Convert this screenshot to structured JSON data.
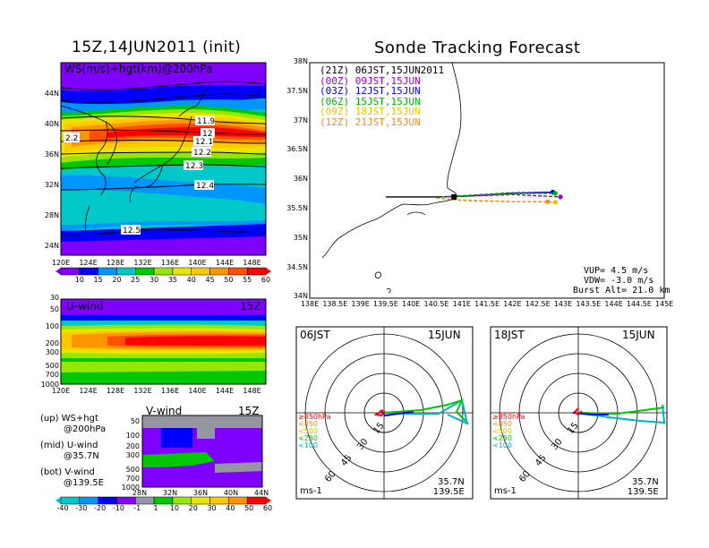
{
  "titles": {
    "left": "15Z,14JUN2011 (init)",
    "right": "Sonde Tracking Forecast"
  },
  "ws_panel": {
    "label": "WS(m/s)+hgt(km)@200hPa",
    "lat_ticks": [
      "44N",
      "40N",
      "36N",
      "32N",
      "28N",
      "24N"
    ],
    "lon_ticks": [
      "120E",
      "124E",
      "128E",
      "132E",
      "136E",
      "140E",
      "144E",
      "148E"
    ],
    "contour_labels": [
      "11.9",
      "12",
      "12.1",
      "12.2",
      "12.3",
      "12.4",
      "12.5",
      "2.2"
    ],
    "colorbar": [
      "10",
      "15",
      "20",
      "25",
      "30",
      "35",
      "40",
      "45",
      "50",
      "55",
      "60"
    ]
  },
  "u_panel": {
    "label": "U-wind",
    "time": "15Z",
    "p_ticks": [
      "30",
      "50",
      "100",
      "200",
      "300",
      "500",
      "700",
      "1000"
    ],
    "lon_ticks": [
      "120E",
      "124E",
      "128E",
      "132E",
      "136E",
      "140E",
      "144E",
      "148E"
    ]
  },
  "v_panel": {
    "label": "V-wind",
    "time": "15Z",
    "p_ticks": [
      "50",
      "100",
      "200",
      "300",
      "500",
      "700",
      "1000"
    ],
    "lat_ticks": [
      "28N",
      "32N",
      "36N",
      "40N",
      "44N"
    ]
  },
  "legend": [
    {
      "line1": "(up) WS+hgt",
      "line2": "@200hPa"
    },
    {
      "line1": "(mid) U-wind",
      "line2": "@35.7N"
    },
    {
      "line1": "(bot) V-wind",
      "line2": "@139.5E"
    }
  ],
  "bottom_colorbar": [
    "-40",
    "-30",
    "-20",
    "-10",
    "-1",
    "1",
    "10",
    "20",
    "30",
    "40",
    "50",
    "60"
  ],
  "tracking": {
    "lat_ticks": [
      "38N",
      "37.5N",
      "37N",
      "36.5N",
      "36N",
      "35.5N",
      "35N",
      "34.5N",
      "34N"
    ],
    "lon_ticks": [
      "138E",
      "138.5E",
      "139E",
      "139.5E",
      "140E",
      "140.5E",
      "141E",
      "141.5E",
      "142E",
      "142.5E",
      "143E",
      "143.5E",
      "144E",
      "144.5E",
      "145E"
    ],
    "runs": [
      {
        "z": "(21Z)",
        "t": "06JST,15JUN2011",
        "color": "#000000"
      },
      {
        "z": "(00Z)",
        "t": "09JST,15JUN",
        "color": "#a000c8"
      },
      {
        "z": "(03Z)",
        "t": "12JST,15JUN",
        "color": "#0000ff"
      },
      {
        "z": "(06Z)",
        "t": "15JST,15JUN",
        "color": "#00b400"
      },
      {
        "z": "(09Z)",
        "t": "18JST,15JUN",
        "color": "#e6c800"
      },
      {
        "z": "(12Z)",
        "t": "21JST,15JUN",
        "color": "#f08c28"
      }
    ],
    "info": [
      "VUP=  4.5 m/s",
      "VDW= -3.0 m/s",
      "Burst Alt= 21.0 km"
    ]
  },
  "hodo_left": {
    "time": "06JST",
    "date": "15JUN",
    "lat": "35.7N",
    "lon": "139.5E",
    "unit": "ms-1",
    "rings": [
      "15",
      "30",
      "45",
      "60"
    ],
    "levels": [
      {
        "label": "≥850hPa",
        "color": "#ff0000"
      },
      {
        "label": "<850",
        "color": "#f08c28"
      },
      {
        "label": "<500",
        "color": "#c8c800"
      },
      {
        "label": "<250",
        "color": "#00c800"
      },
      {
        "label": "<100",
        "color": "#00b4c8"
      }
    ]
  },
  "hodo_right": {
    "time": "18JST",
    "date": "15JUN",
    "lat": "35.7N",
    "lon": "139.5E",
    "unit": "ms-1",
    "rings": [
      "15",
      "30",
      "45",
      "60"
    ],
    "levels": [
      {
        "label": "≥850hPa",
        "color": "#ff0000"
      },
      {
        "label": "<850",
        "color": "#f08c28"
      },
      {
        "label": "<500",
        "color": "#c8c800"
      },
      {
        "label": "<250",
        "color": "#00c800"
      },
      {
        "label": "<100",
        "color": "#00b4c8"
      }
    ]
  },
  "colors": {
    "ws": [
      "#8000ff",
      "#0000ff",
      "#0096ff",
      "#00c8c8",
      "#00c800",
      "#96e600",
      "#e6e600",
      "#ffc800",
      "#ff9600",
      "#ff5000",
      "#ff0000"
    ],
    "uv": [
      "#00c8c8",
      "#0096ff",
      "#0000ff",
      "#8000ff",
      "#9696a0",
      "#00c800",
      "#96e600",
      "#e6e600",
      "#ffc800",
      "#ff9600",
      "#ff0000"
    ]
  },
  "chart_data": [
    {
      "type": "heatmap",
      "title": "WS(m/s)+hgt(km)@200hPa",
      "xlim": [
        "120E",
        "148E"
      ],
      "ylim": [
        "24N",
        "44N"
      ],
      "contours_km": [
        11.9,
        12,
        12.1,
        12.2,
        12.3,
        12.4,
        12.5
      ],
      "colorbar_ticks": [
        10,
        15,
        20,
        25,
        30,
        35,
        40,
        45,
        50,
        55,
        60
      ]
    },
    {
      "type": "heatmap",
      "title": "U-wind",
      "xlim": [
        "120E",
        "148E"
      ],
      "ylim_hPa": [
        1000,
        30
      ]
    },
    {
      "type": "heatmap",
      "title": "V-wind",
      "xlim": [
        "28N",
        "44N"
      ],
      "ylim_hPa": [
        1000,
        50
      ]
    },
    {
      "type": "line",
      "title": "Sonde Tracking Forecast",
      "xlim": [
        138,
        145
      ],
      "ylim": [
        34,
        38
      ],
      "series": [
        {
          "name": "(21Z) 06JST,15JUN2011",
          "x": [
            139.5,
            140.5,
            141.0,
            142.0,
            142.8
          ],
          "y": [
            35.72,
            35.72,
            35.73,
            35.78,
            35.8
          ]
        },
        {
          "name": "(00Z) 09JST,15JUN",
          "x": [
            140.6,
            141.0,
            142.0,
            142.95
          ],
          "y": [
            35.72,
            35.73,
            35.76,
            35.72
          ]
        },
        {
          "name": "(03Z) 12JST,15JUN",
          "x": [
            140.6,
            141.0,
            142.0,
            142.8
          ],
          "y": [
            35.72,
            35.74,
            35.79,
            35.8
          ]
        },
        {
          "name": "(06Z) 15JST,15JUN",
          "x": [
            140.6,
            141.0,
            142.0,
            142.85
          ],
          "y": [
            35.72,
            35.74,
            35.78,
            35.78
          ]
        },
        {
          "name": "(09Z) 18JST,15JUN",
          "x": [
            140.5,
            141.0,
            142.0,
            142.85
          ],
          "y": [
            35.7,
            35.67,
            35.64,
            35.63
          ]
        },
        {
          "name": "(12Z) 21JST,15JUN",
          "x": [
            140.5,
            141.0,
            142.0,
            142.7
          ],
          "y": [
            35.7,
            35.66,
            35.64,
            35.64
          ]
        }
      ]
    }
  ]
}
